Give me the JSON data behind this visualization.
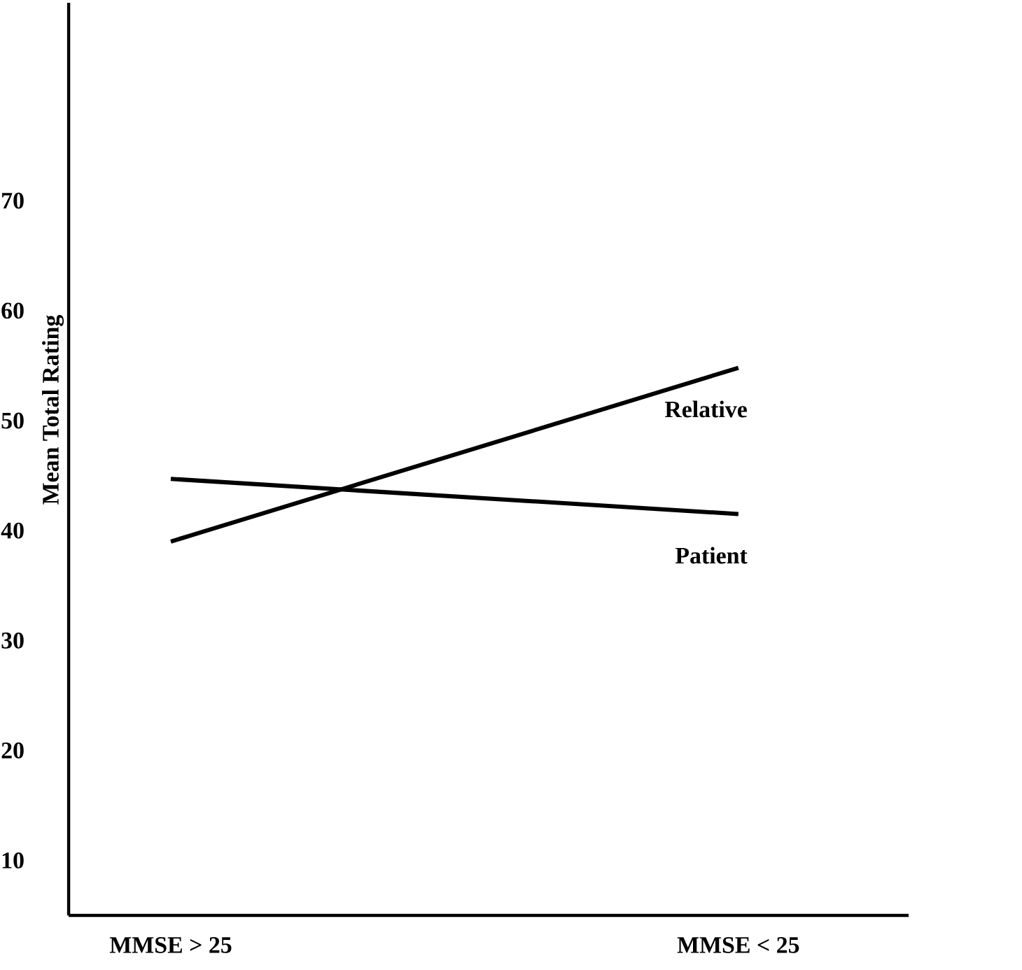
{
  "chart_data": {
    "type": "line",
    "ylabel": "Mean Total Rating",
    "categories": [
      "MMSE > 25",
      "MMSE < 25"
    ],
    "series": [
      {
        "name": "Relative",
        "color": "#000000",
        "values": [
          39,
          54.8
        ]
      },
      {
        "name": "Patient",
        "color": "#000000",
        "values": [
          44.7,
          41.5
        ]
      }
    ],
    "ylim": [
      5,
      88
    ],
    "yticks": [
      10,
      20,
      30,
      40,
      50,
      60,
      70
    ]
  }
}
